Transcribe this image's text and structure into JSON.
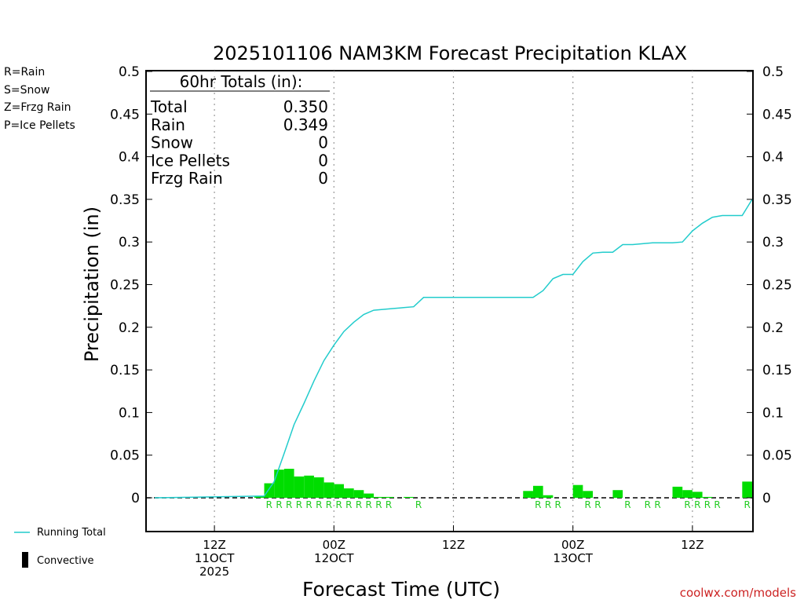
{
  "chart_data": {
    "type": "bar",
    "title": "2025101106 NAM3KM Forecast Precipitation KLAX",
    "xlabel": "Forecast Time (UTC)",
    "ylabel": "Precipitation (in)",
    "ylim": [
      -0.04,
      0.5
    ],
    "xlim": [
      0,
      60
    ],
    "y_ticks": [
      "0",
      "0.05",
      "0.1",
      "0.15",
      "0.2",
      "0.25",
      "0.3",
      "0.35",
      "0.4",
      "0.45",
      "0.5"
    ],
    "y_tick_values": [
      0,
      0.05,
      0.1,
      0.15,
      0.2,
      0.25,
      0.3,
      0.35,
      0.4,
      0.45,
      0.5
    ],
    "x_ticks": [
      {
        "hour": 6,
        "lines": [
          "12Z",
          "11OCT",
          "2025"
        ]
      },
      {
        "hour": 18,
        "lines": [
          "00Z",
          "12OCT"
        ]
      },
      {
        "hour": 30,
        "lines": [
          "12Z"
        ]
      },
      {
        "hour": 42,
        "lines": [
          "00Z",
          "13OCT"
        ]
      },
      {
        "hour": 54,
        "lines": [
          "12Z"
        ]
      }
    ],
    "legend": [
      {
        "label": "R=Rain",
        "color": "#22cc22"
      },
      {
        "label": "S=Snow",
        "color": "#3355ee"
      },
      {
        "label": "Z=Frzg Rain",
        "color": "#ee8833"
      },
      {
        "label": "P=Ice Pellets",
        "color": "#ee2288"
      }
    ],
    "series_legend": {
      "running_total": "Running Total",
      "convective": "Convective"
    },
    "totals_box": {
      "header": "60hr Totals (in):",
      "rows": [
        {
          "label": "Total",
          "value": "0.350"
        },
        {
          "label": "Rain",
          "value": "0.349"
        },
        {
          "label": "Snow",
          "value": "0"
        },
        {
          "label": "Ice Pellets",
          "value": "0"
        },
        {
          "label": "Frzg Rain",
          "value": "0"
        }
      ]
    },
    "hourly_precip": {
      "name": "Hourly Precipitation",
      "color": "#00dd00",
      "x": [
        11,
        12,
        13,
        14,
        15,
        16,
        17,
        18,
        19,
        20,
        21,
        22,
        23,
        24,
        26,
        38,
        39,
        40,
        43,
        44,
        47,
        53,
        54,
        55,
        56,
        60
      ],
      "values": [
        0.002,
        0.017,
        0.033,
        0.034,
        0.025,
        0.026,
        0.024,
        0.018,
        0.016,
        0.011,
        0.009,
        0.005,
        0.001,
        0.001,
        0.001,
        0.008,
        0.014,
        0.003,
        0.015,
        0.008,
        0.009,
        0.013,
        0.009,
        0.007,
        0.001,
        0.019
      ]
    },
    "running_total": {
      "name": "Running Total",
      "color": "#22cccc",
      "x": [
        0,
        11,
        12,
        13,
        14,
        15,
        16,
        17,
        18,
        19,
        20,
        21,
        22,
        23,
        24,
        25,
        26,
        27,
        38,
        39,
        40,
        41,
        42,
        43,
        44,
        45,
        46,
        47,
        48,
        49,
        50,
        51,
        52,
        53,
        54,
        55,
        56,
        57,
        58,
        59,
        60
      ],
      "values": [
        0,
        0.002,
        0.019,
        0.052,
        0.086,
        0.111,
        0.137,
        0.161,
        0.179,
        0.195,
        0.206,
        0.215,
        0.22,
        0.221,
        0.222,
        0.223,
        0.224,
        0.235,
        0.235,
        0.243,
        0.257,
        0.262,
        0.262,
        0.277,
        0.287,
        0.288,
        0.288,
        0.297,
        0.297,
        0.298,
        0.299,
        0.299,
        0.299,
        0.3,
        0.313,
        0.322,
        0.329,
        0.331,
        0.331,
        0.331,
        0.35
      ]
    },
    "ptype_labels": {
      "text": "R",
      "x": [
        12,
        13,
        14,
        15,
        16,
        17,
        18,
        19,
        20,
        21,
        22,
        23,
        24,
        27,
        39,
        40,
        41,
        44,
        45,
        48,
        50,
        51,
        54,
        55,
        56,
        57,
        60
      ]
    }
  },
  "footer": {
    "credit": "coolwx.com/models"
  }
}
